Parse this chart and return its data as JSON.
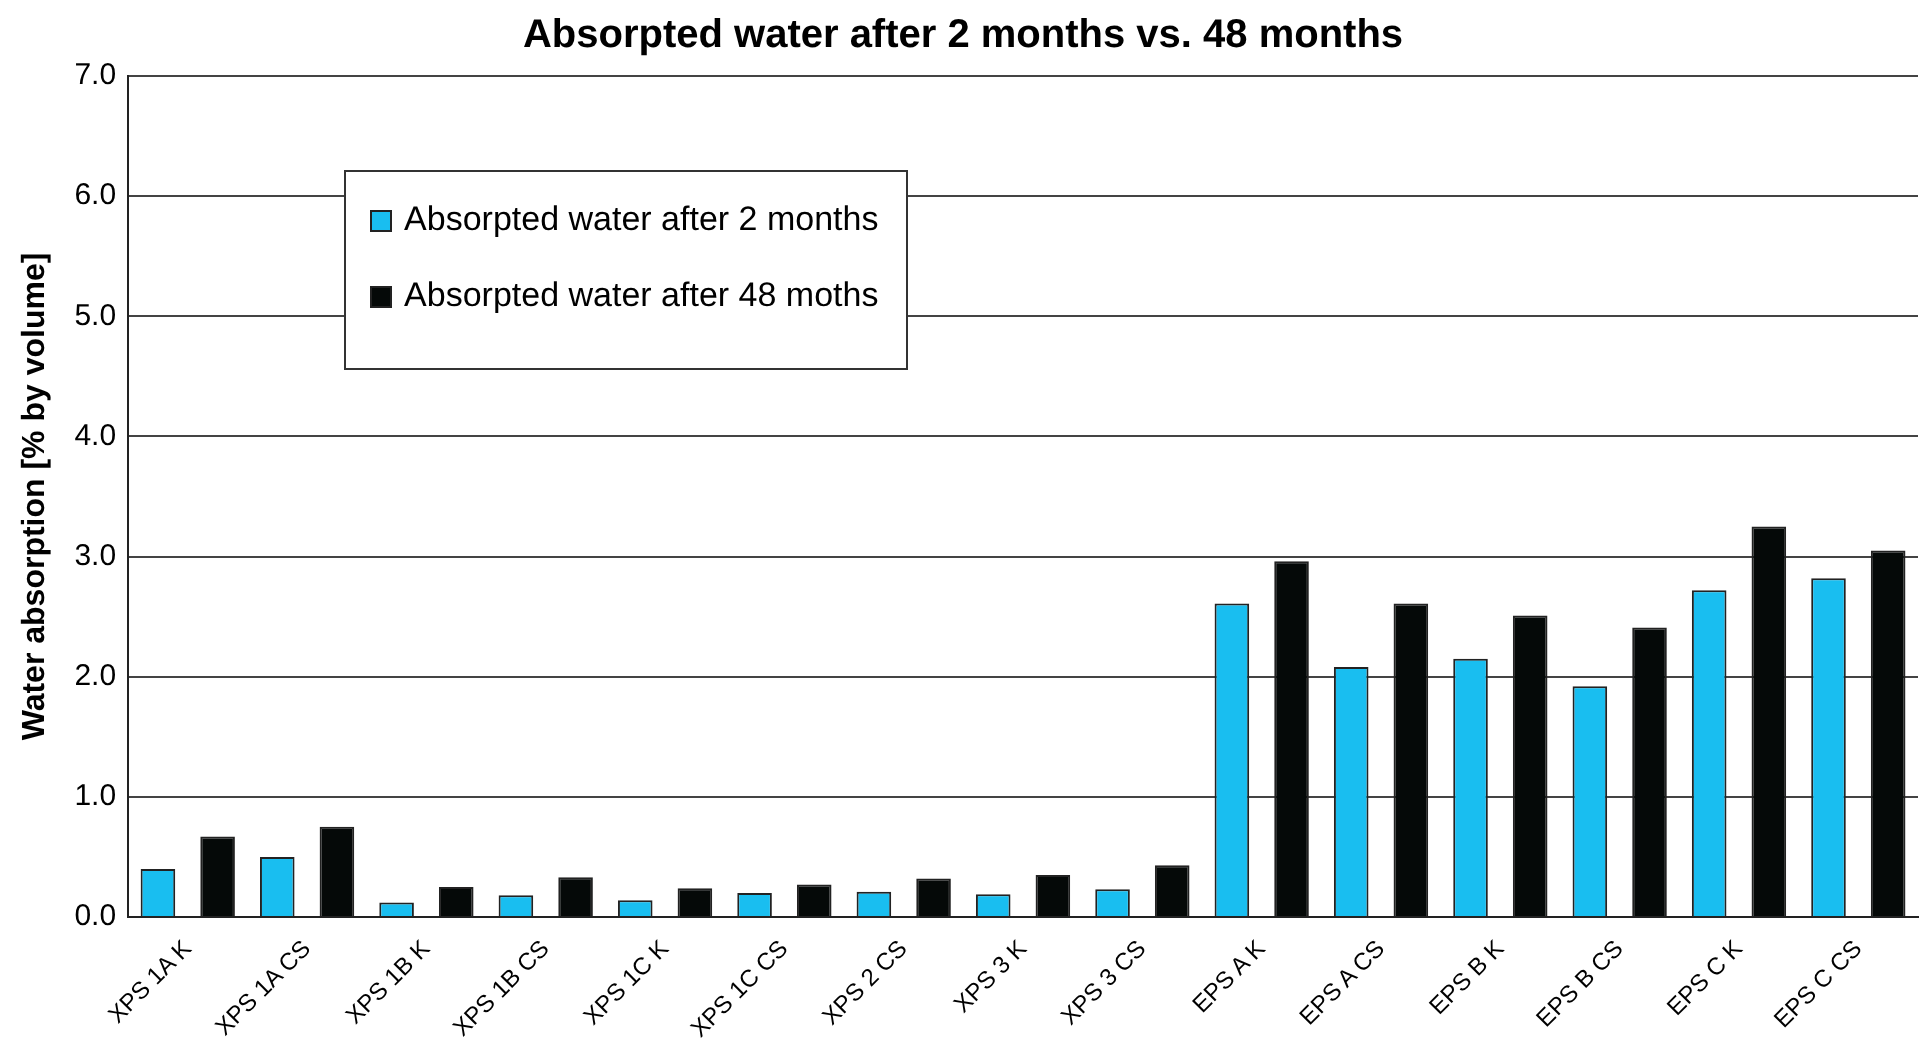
{
  "chart_data": {
    "type": "bar",
    "title": "Absorpted water after 2 months vs. 48 months",
    "ylabel": "Water absorption [% by volume]",
    "categories": [
      "XPS 1A K",
      "XPS 1A CS",
      "XPS 1B K",
      "XPS 1B CS",
      "XPS 1C K",
      "XPS 1C CS",
      "XPS 2 CS",
      "XPS 3 K",
      "XPS 3 CS",
      "EPS A K",
      "EPS A CS",
      "EPS B K",
      "EPS B CS",
      "EPS C K",
      "EPS C CS"
    ],
    "series": [
      {
        "name": "Absorpted water after 2 months",
        "color": "#19bef0",
        "values": [
          0.4,
          0.5,
          0.12,
          0.18,
          0.14,
          0.2,
          0.21,
          0.19,
          0.23,
          2.61,
          2.08,
          2.15,
          1.92,
          2.72,
          2.82
        ]
      },
      {
        "name": "Absorpted water after 48 moths",
        "color": "#050908",
        "values": [
          0.67,
          0.75,
          0.25,
          0.33,
          0.24,
          0.27,
          0.32,
          0.35,
          0.43,
          2.96,
          2.61,
          2.51,
          2.41,
          3.25,
          3.05
        ]
      }
    ],
    "ylim": [
      0,
      7
    ],
    "yticks": [
      {
        "value": 0,
        "label": "0.0"
      },
      {
        "value": 1,
        "label": "1.0"
      },
      {
        "value": 2,
        "label": "2.0"
      },
      {
        "value": 3,
        "label": "3.0"
      },
      {
        "value": 4,
        "label": "4.0"
      },
      {
        "value": 5,
        "label": "5.0"
      },
      {
        "value": 6,
        "label": "6.0"
      },
      {
        "value": 7,
        "label": "7.0"
      }
    ],
    "grid": "y",
    "legend": "top left"
  }
}
